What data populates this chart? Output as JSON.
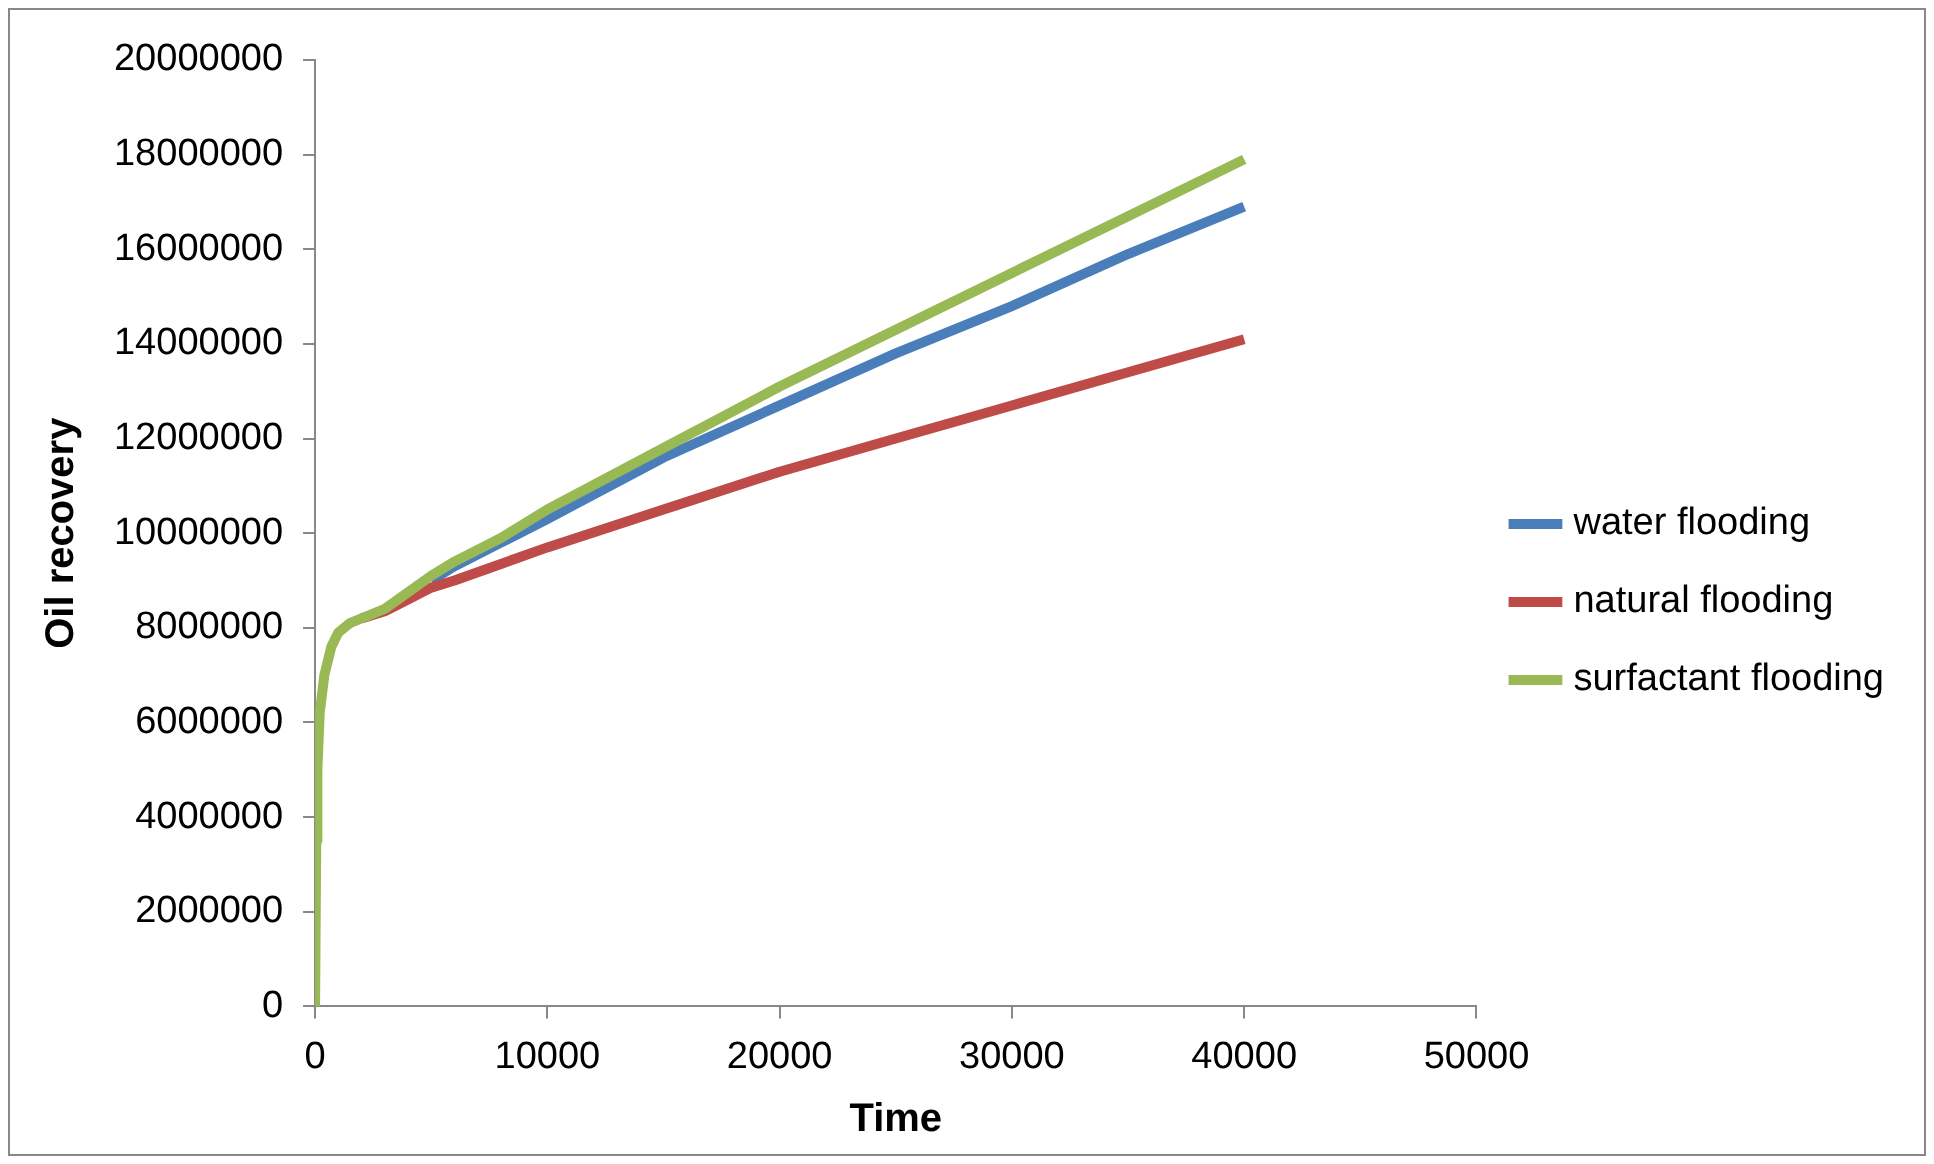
{
  "chart_data": {
    "type": "line",
    "xlabel": "Time",
    "ylabel": "Oil recovery",
    "x": [
      0,
      50,
      100,
      200,
      400,
      700,
      1000,
      1500,
      2000,
      3000,
      4000,
      5000,
      6000,
      8000,
      10000,
      15000,
      20000,
      25000,
      30000,
      35000,
      40000
    ],
    "series": [
      {
        "name": "water flooding",
        "color": "#4a7ebb",
        "values": [
          null,
          null,
          null,
          null,
          null,
          null,
          null,
          null,
          null,
          null,
          null,
          9000000,
          9300000,
          9800000,
          10300000,
          11600000,
          12700000,
          13800000,
          14800000,
          15900000,
          16900000
        ]
      },
      {
        "name": "natural flooding",
        "color": "#be4b48",
        "values": [
          null,
          null,
          null,
          null,
          null,
          null,
          null,
          null,
          8200000,
          8350000,
          8600000,
          8850000,
          9000000,
          9350000,
          9700000,
          10500000,
          11300000,
          12000000,
          12700000,
          13400000,
          14100000
        ]
      },
      {
        "name": "surfactant flooding",
        "color": "#98b954",
        "values": [
          0,
          3500000,
          5000000,
          6200000,
          7000000,
          7600000,
          7900000,
          8100000,
          8200000,
          8400000,
          8750000,
          9100000,
          9400000,
          9900000,
          10500000,
          11800000,
          13100000,
          14300000,
          15500000,
          16700000,
          17900000
        ]
      }
    ],
    "xlim": [
      0,
      50000
    ],
    "xticks": [
      0,
      10000,
      20000,
      30000,
      40000,
      50000
    ],
    "ylim": [
      0,
      20000000
    ],
    "yticks": [
      0,
      2000000,
      4000000,
      6000000,
      8000000,
      10000000,
      12000000,
      14000000,
      16000000,
      18000000,
      20000000
    ],
    "grid": false,
    "legend": "right",
    "marker": "none",
    "line_style": "solid"
  }
}
